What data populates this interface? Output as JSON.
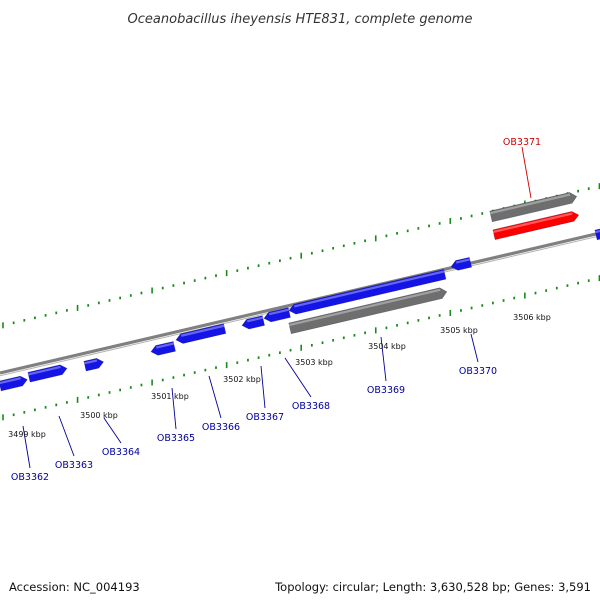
{
  "title": "Oceanobacillus iheyensis HTE831, complete genome",
  "footer": {
    "accession": "Accession: NC_004193",
    "summary": "Topology: circular; Length: 3,630,528 bp; Genes: 3,591"
  },
  "colors": {
    "forward_gene": "#1414e6",
    "reverse_gene": "#0000cc",
    "highlight_gene": "#ff0000",
    "rna_gene": "#6e6e6e",
    "backbone": "#808080",
    "tick": "#1a8a1a",
    "label_default": "#00009c",
    "label_highlight": "#d00000"
  },
  "chart_data": {
    "type": "linear-genome-map",
    "unit": "kbp",
    "scale_labels": [
      "3499 kbp",
      "3500 kbp",
      "3501 kbp",
      "3502 kbp",
      "3503 kbp",
      "3504 kbp",
      "3505 kbp",
      "3506 kbp"
    ],
    "genes": [
      {
        "label": "OB3362",
        "start_kbp": 3498.9,
        "end_kbp": 3499.05,
        "strand": "+",
        "color": "forward"
      },
      {
        "label": "OB3363",
        "start_kbp": 3499.1,
        "end_kbp": 3499.4,
        "strand": "+",
        "color": "forward"
      },
      {
        "label": "OB3364",
        "start_kbp": 3499.75,
        "end_kbp": 3499.88,
        "strand": "+",
        "color": "forward"
      },
      {
        "label": "OB3365",
        "start_kbp": 3500.65,
        "end_kbp": 3500.8,
        "strand": "-",
        "color": "forward"
      },
      {
        "label": "OB3366",
        "start_kbp": 3500.9,
        "end_kbp": 3501.35,
        "strand": "-",
        "color": "forward"
      },
      {
        "label": "OB3367",
        "start_kbp": 3501.55,
        "end_kbp": 3501.75,
        "strand": "-",
        "color": "forward"
      },
      {
        "label": "OB3368",
        "start_kbp": 3501.8,
        "end_kbp": 3502.05,
        "strand": "-",
        "color": "forward"
      },
      {
        "label": "OB3369",
        "start_kbp": 3502.05,
        "end_kbp": 3504.1,
        "strand": "-",
        "color": "forward"
      },
      {
        "label": "OB3370",
        "start_kbp": 3504.15,
        "end_kbp": 3504.35,
        "strand": "+",
        "color": "forward"
      },
      {
        "label": "OB3371",
        "start_kbp": 3504.7,
        "end_kbp": 3505.8,
        "strand": "+",
        "color": "highlight"
      }
    ]
  }
}
